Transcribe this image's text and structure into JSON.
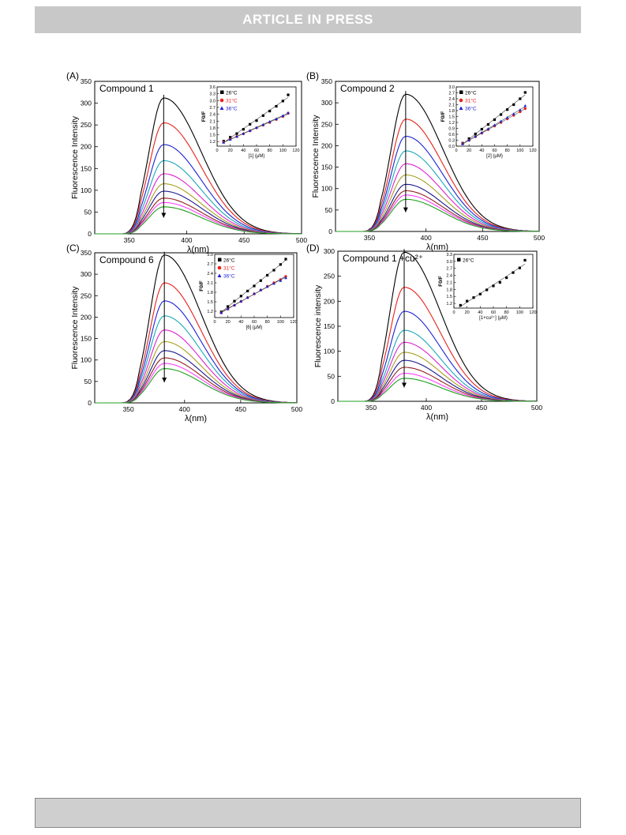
{
  "header": {
    "banner_text": "ARTICLE  IN  PRESS"
  },
  "colors": {
    "banner_bg": "#c8c8c8",
    "footer_bg": "#cfcfcf"
  },
  "chart_data": [
    {
      "type": "line",
      "panel_label": "(A)",
      "title": "Compound 1",
      "xlabel": "λ(nm)",
      "ylabel": "Fluorescence Intensity",
      "xlim": [
        320,
        500
      ],
      "ylim": [
        0,
        350
      ],
      "xticks": [
        350,
        400,
        450,
        500
      ],
      "yticks": [
        0,
        50,
        100,
        150,
        200,
        250,
        300,
        350
      ],
      "peak_nm": 380,
      "curve_peaks": [
        312,
        255,
        205,
        168,
        138,
        115,
        98,
        82,
        72,
        62
      ],
      "curve_colors": [
        "#000000",
        "#e8221b",
        "#1a22d6",
        "#1aa8b8",
        "#e020d0",
        "#a8a020",
        "#1a1a90",
        "#902020",
        "#ff40ff",
        "#20a020"
      ],
      "inset": {
        "xlabel": "[1] (μM)",
        "ylabel": "F0/F",
        "xlim": [
          0,
          120
        ],
        "ylim": [
          1.0,
          3.6
        ],
        "xticks": [
          0,
          20,
          40,
          60,
          80,
          100,
          120
        ],
        "yticks": [
          1.2,
          1.5,
          1.8,
          2.1,
          2.4,
          2.7,
          3.0,
          3.3,
          3.6
        ],
        "series": [
          {
            "name": "26°C",
            "color": "#000000",
            "marker": "square",
            "x": [
              10,
              20,
              30,
              40,
              50,
              60,
              70,
              80,
              90,
              100,
              108
            ],
            "y": [
              1.22,
              1.39,
              1.55,
              1.74,
              1.96,
              2.12,
              2.34,
              2.54,
              2.75,
              2.98,
              3.25
            ]
          },
          {
            "name": "31°C",
            "color": "#e8221b",
            "marker": "circle",
            "x": [
              10,
              20,
              30,
              40,
              50,
              60,
              70,
              80,
              90,
              100,
              108
            ],
            "y": [
              1.18,
              1.31,
              1.42,
              1.54,
              1.67,
              1.8,
              1.92,
              2.04,
              2.17,
              2.3,
              2.44
            ]
          },
          {
            "name": "36°C",
            "color": "#1a22d6",
            "marker": "triangle",
            "x": [
              10,
              20,
              30,
              40,
              50,
              60,
              70,
              80,
              90,
              100,
              108
            ],
            "y": [
              1.17,
              1.3,
              1.43,
              1.56,
              1.69,
              1.82,
              1.95,
              2.08,
              2.2,
              2.34,
              2.47
            ]
          }
        ]
      }
    },
    {
      "type": "line",
      "panel_label": "(B)",
      "title": "Compound 2",
      "xlabel": "λ(nm)",
      "ylabel": "Fluorescence Intensity",
      "xlim": [
        320,
        500
      ],
      "ylim": [
        0,
        350
      ],
      "xticks": [
        350,
        400,
        450,
        500
      ],
      "yticks": [
        0,
        50,
        100,
        150,
        200,
        250,
        300,
        350
      ],
      "peak_nm": 382,
      "curve_peaks": [
        320,
        262,
        222,
        188,
        158,
        132,
        110,
        95,
        85,
        75
      ],
      "curve_colors": [
        "#000000",
        "#e8221b",
        "#1a22d6",
        "#1aa8b8",
        "#e020d0",
        "#a8a020",
        "#1a1a90",
        "#902020",
        "#ff40ff",
        "#20a020"
      ],
      "inset": {
        "xlabel": "[2] (μM)",
        "ylabel": "F0/F",
        "xlim": [
          0,
          120
        ],
        "ylim": [
          0.0,
          3.0
        ],
        "xticks": [
          0,
          20,
          40,
          60,
          80,
          100,
          120
        ],
        "yticks": [
          0.0,
          0.3,
          0.6,
          0.9,
          1.2,
          1.5,
          1.8,
          2.1,
          2.4,
          2.7,
          3.0
        ],
        "series": [
          {
            "name": "26°C",
            "color": "#000000",
            "marker": "square",
            "x": [
              10,
              20,
              30,
              40,
              50,
              60,
              70,
              80,
              90,
              100,
              108
            ],
            "y": [
              0.15,
              0.38,
              0.62,
              0.86,
              1.1,
              1.34,
              1.6,
              1.85,
              2.1,
              2.4,
              2.72
            ]
          },
          {
            "name": "31°C",
            "color": "#e8221b",
            "marker": "circle",
            "x": [
              10,
              20,
              30,
              40,
              50,
              60,
              70,
              80,
              90,
              100,
              108
            ],
            "y": [
              0.12,
              0.3,
              0.48,
              0.66,
              0.84,
              1.02,
              1.2,
              1.38,
              1.56,
              1.74,
              1.9
            ]
          },
          {
            "name": "36°C",
            "color": "#1a22d6",
            "marker": "triangle",
            "x": [
              10,
              20,
              30,
              40,
              50,
              60,
              70,
              80,
              90,
              100,
              108
            ],
            "y": [
              0.12,
              0.31,
              0.5,
              0.69,
              0.88,
              1.07,
              1.26,
              1.45,
              1.64,
              1.84,
              2.05
            ]
          }
        ]
      }
    },
    {
      "type": "line",
      "panel_label": "(C)",
      "title": "Compound 6",
      "xlabel": "λ(nm)",
      "ylabel": "Fluorescence Intensity",
      "xlim": [
        320,
        500
      ],
      "ylim": [
        0,
        350
      ],
      "xticks": [
        350,
        400,
        450,
        500
      ],
      "yticks": [
        0,
        50,
        100,
        150,
        200,
        250,
        300,
        350
      ],
      "peak_nm": 382,
      "curve_peaks": [
        345,
        280,
        238,
        203,
        170,
        143,
        122,
        105,
        92,
        80
      ],
      "curve_colors": [
        "#000000",
        "#e8221b",
        "#1a22d6",
        "#1aa8b8",
        "#e020d0",
        "#a8a020",
        "#1a1a90",
        "#902020",
        "#ff40ff",
        "#20a020"
      ],
      "inset": {
        "xlabel": "[6] (μM)",
        "ylabel": "F0/F",
        "xlim": [
          0,
          120
        ],
        "ylim": [
          1.0,
          3.0
        ],
        "xticks": [
          0,
          20,
          40,
          60,
          80,
          100,
          120
        ],
        "yticks": [
          1.2,
          1.5,
          1.8,
          2.1,
          2.4,
          2.7,
          3.0
        ],
        "series": [
          {
            "name": "26°C",
            "color": "#000000",
            "marker": "square",
            "x": [
              10,
              20,
              30,
              40,
              50,
              60,
              70,
              80,
              90,
              100,
              108
            ],
            "y": [
              1.18,
              1.35,
              1.52,
              1.68,
              1.84,
              2.0,
              2.17,
              2.34,
              2.5,
              2.68,
              2.85
            ]
          },
          {
            "name": "31°C",
            "color": "#e8221b",
            "marker": "circle",
            "x": [
              10,
              20,
              30,
              40,
              50,
              60,
              70,
              80,
              90,
              100,
              108
            ],
            "y": [
              1.15,
              1.27,
              1.39,
              1.51,
              1.63,
              1.75,
              1.87,
              1.99,
              2.1,
              2.2,
              2.3
            ]
          },
          {
            "name": "36°C",
            "color": "#1a22d6",
            "marker": "triangle",
            "x": [
              10,
              20,
              30,
              40,
              50,
              60,
              70,
              80,
              90,
              100,
              108
            ],
            "y": [
              1.16,
              1.28,
              1.4,
              1.52,
              1.64,
              1.76,
              1.88,
              1.98,
              2.08,
              2.17,
              2.26
            ]
          }
        ]
      }
    },
    {
      "type": "line",
      "panel_label": "(D)",
      "title": "Compound 1 +cu²⁺",
      "xlabel": "λ(nm)",
      "ylabel": "Fluorescence intensity",
      "xlim": [
        320,
        500
      ],
      "ylim": [
        0,
        300
      ],
      "xticks": [
        350,
        400,
        450,
        500
      ],
      "yticks": [
        0,
        50,
        100,
        150,
        200,
        250,
        300
      ],
      "peak_nm": 380,
      "curve_peaks": [
        298,
        228,
        180,
        142,
        118,
        98,
        82,
        68,
        56,
        46
      ],
      "curve_colors": [
        "#000000",
        "#e8221b",
        "#1a22d6",
        "#1aa8b8",
        "#e020d0",
        "#a8a020",
        "#1a1a90",
        "#902020",
        "#ff40ff",
        "#20a020"
      ],
      "inset": {
        "xlabel": "[1+cu²⁺] (μM)",
        "ylabel": "F0/F",
        "xlim": [
          0,
          120
        ],
        "ylim": [
          1.0,
          3.3
        ],
        "xticks": [
          0,
          20,
          40,
          60,
          80,
          100,
          120
        ],
        "yticks": [
          1.2,
          1.5,
          1.8,
          2.1,
          2.4,
          2.7,
          3.0,
          3.3
        ],
        "series": [
          {
            "name": "26°C",
            "color": "#000000",
            "marker": "square",
            "x": [
              10,
              20,
              30,
              40,
              50,
              60,
              70,
              80,
              90,
              100,
              108
            ],
            "y": [
              1.12,
              1.3,
              1.45,
              1.6,
              1.78,
              1.95,
              2.1,
              2.3,
              2.52,
              2.72,
              3.05
            ]
          }
        ]
      }
    }
  ]
}
